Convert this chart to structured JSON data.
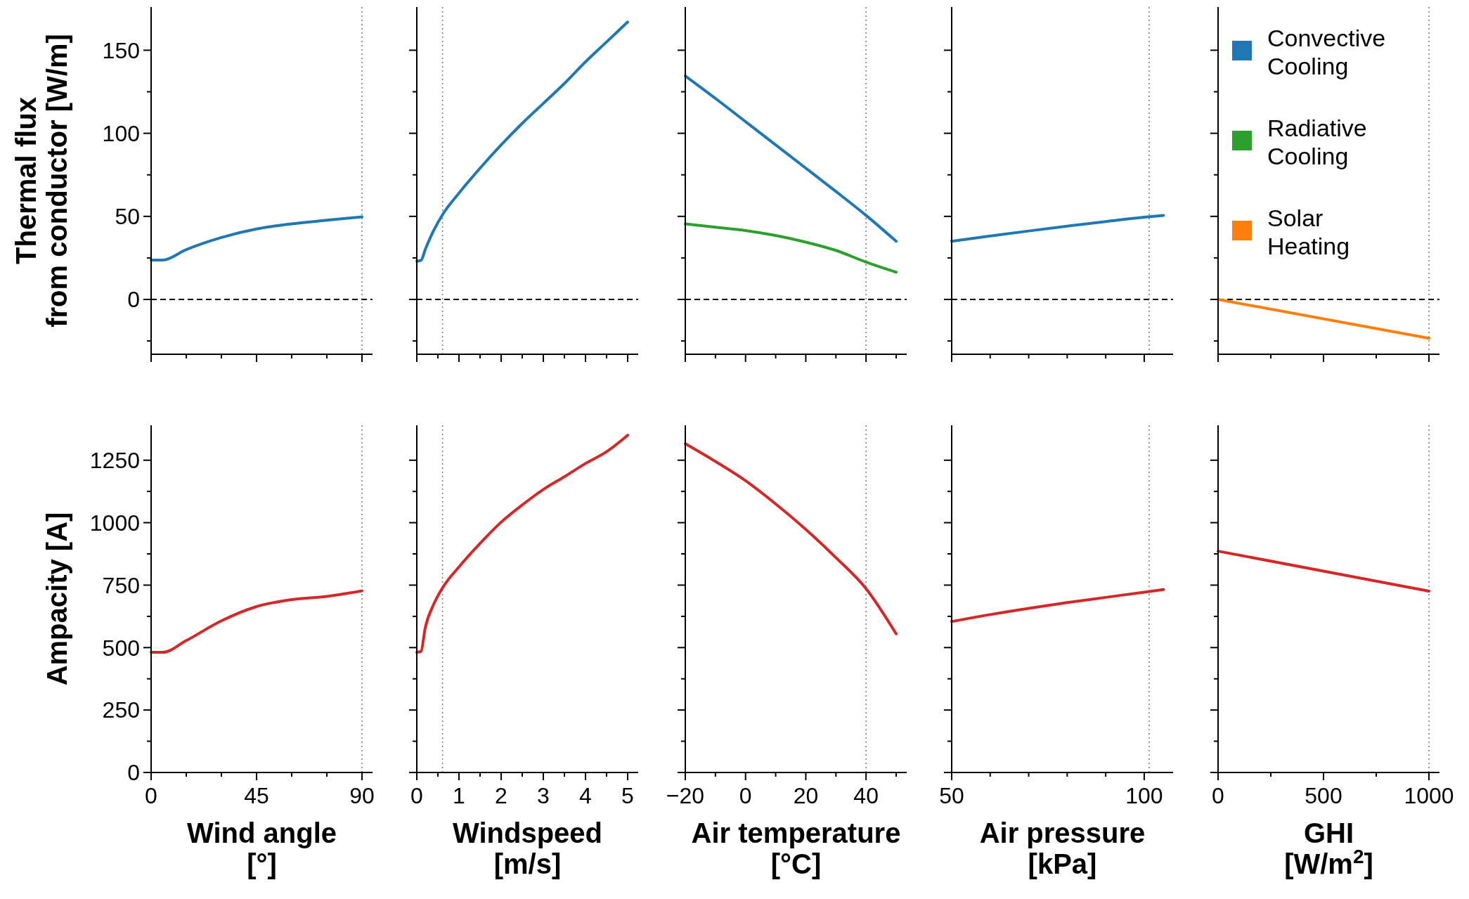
{
  "chart_data": [
    {
      "type": "line",
      "ylabel": "Thermal flux\nfrom conductor [W/m]",
      "x": [
        0,
        5,
        15,
        30,
        45,
        60,
        75,
        90
      ],
      "series": [
        {
          "color": "#1f77b4",
          "values": [
            23.7,
            23.7,
            30,
            37.3,
            42.4,
            45.5,
            47.7,
            49.7
          ]
        }
      ],
      "xlim": [
        0,
        94.5
      ],
      "xticks": [
        0,
        45,
        90,
        {
          "value": 15,
          "label": null
        },
        {
          "value": 30,
          "label": null
        },
        {
          "value": 60,
          "label": null
        },
        {
          "value": 75,
          "label": null
        }
      ],
      "ylim": [
        -33,
        176
      ],
      "yticks": [
        0,
        50,
        100,
        150,
        {
          "value": -25,
          "label": null
        },
        {
          "value": 25,
          "label": null
        },
        {
          "value": 75,
          "label": null
        },
        {
          "value": 125,
          "label": null
        }
      ],
      "tick_labels": "y",
      "ref_lines": [
        {
          "axis": "y",
          "value": 0,
          "color": "#000000",
          "line_style": "dashed"
        },
        {
          "axis": "x",
          "value": 90,
          "color": "#808080",
          "line_style": "dotted"
        }
      ]
    },
    {
      "type": "line",
      "x": [
        0,
        0.1,
        0.2,
        0.4,
        0.61,
        1,
        1.5,
        2,
        2.5,
        3,
        3.5,
        4,
        4.5,
        5
      ],
      "series": [
        {
          "color": "#1f77b4",
          "values": [
            23,
            23.5,
            30,
            41.5,
            51,
            64,
            79,
            93,
            106,
            118,
            130,
            143,
            155,
            167
          ]
        }
      ],
      "xlim": [
        0,
        5.25
      ],
      "xticks": [
        0,
        1,
        2,
        3,
        4,
        5,
        {
          "value": 0.5,
          "label": null
        },
        {
          "value": 1.5,
          "label": null
        },
        {
          "value": 2.5,
          "label": null
        },
        {
          "value": 3.5,
          "label": null
        },
        {
          "value": 4.5,
          "label": null
        }
      ],
      "ylim": [
        -33,
        176
      ],
      "yticks": [
        0,
        50,
        100,
        150,
        {
          "value": -25,
          "label": null
        },
        {
          "value": 25,
          "label": null
        },
        {
          "value": 75,
          "label": null
        },
        {
          "value": 125,
          "label": null
        }
      ],
      "tick_labels": false,
      "ref_lines": [
        {
          "axis": "y",
          "value": 0,
          "color": "#000000",
          "line_style": "dashed"
        },
        {
          "axis": "x",
          "value": 0.61,
          "color": "#808080",
          "line_style": "dotted"
        }
      ]
    },
    {
      "type": "line",
      "x": [
        -20,
        -10,
        0,
        10,
        20,
        30,
        40,
        50
      ],
      "series": [
        {
          "color": "#1f77b4",
          "values": [
            134.5,
            121,
            107,
            93,
            79,
            65,
            50.6,
            35
          ]
        },
        {
          "color": "#2ca02c",
          "values": [
            45.5,
            43.5,
            41.5,
            38.5,
            34.5,
            29.5,
            22.5,
            16.4
          ]
        }
      ],
      "xlim": [
        -20,
        53.5
      ],
      "xticks": [
        -20,
        0,
        20,
        40,
        {
          "value": -10,
          "label": null
        },
        {
          "value": 10,
          "label": null
        },
        {
          "value": 30,
          "label": null
        },
        {
          "value": 50,
          "label": null
        }
      ],
      "ylim": [
        -33,
        176
      ],
      "yticks": [
        0,
        50,
        100,
        150,
        {
          "value": -25,
          "label": null
        },
        {
          "value": 25,
          "label": null
        },
        {
          "value": 75,
          "label": null
        },
        {
          "value": 125,
          "label": null
        }
      ],
      "tick_labels": false,
      "ref_lines": [
        {
          "axis": "y",
          "value": 0,
          "color": "#000000",
          "line_style": "dashed"
        },
        {
          "axis": "x",
          "value": 40,
          "color": "#808080",
          "line_style": "dotted"
        }
      ]
    },
    {
      "type": "line",
      "x": [
        50,
        60,
        70,
        80,
        90,
        100,
        105
      ],
      "series": [
        {
          "color": "#1f77b4",
          "values": [
            35,
            38.2,
            41.2,
            44.1,
            46.9,
            49.5,
            50.6
          ]
        }
      ],
      "xlim": [
        50,
        107.5
      ],
      "xticks": [
        50,
        100,
        {
          "value": 60,
          "label": null
        },
        {
          "value": 70,
          "label": null
        },
        {
          "value": 80,
          "label": null
        },
        {
          "value": 90,
          "label": null
        }
      ],
      "ylim": [
        -33,
        176
      ],
      "yticks": [
        0,
        50,
        100,
        150,
        {
          "value": -25,
          "label": null
        },
        {
          "value": 25,
          "label": null
        },
        {
          "value": 75,
          "label": null
        },
        {
          "value": 125,
          "label": null
        }
      ],
      "tick_labels": false,
      "ref_lines": [
        {
          "axis": "y",
          "value": 0,
          "color": "#000000",
          "line_style": "dashed"
        },
        {
          "axis": "x",
          "value": 101.3,
          "color": "#808080",
          "line_style": "dotted"
        }
      ]
    },
    {
      "type": "line",
      "x": [
        0,
        1000
      ],
      "series": [
        {
          "name": "Convective Cooling",
          "color": "#1f77b4",
          "values": [
            null,
            null
          ]
        },
        {
          "name": "Radiative Cooling",
          "color": "#2ca02c",
          "values": [
            null,
            null
          ]
        },
        {
          "name": "Solar Heating",
          "color": "#ff7f0e",
          "values": [
            0,
            -23.4
          ]
        }
      ],
      "legend": "top left",
      "xlim": [
        0,
        1050
      ],
      "xticks": [
        0,
        500,
        1000,
        {
          "value": 250,
          "label": null
        },
        {
          "value": 750,
          "label": null
        }
      ],
      "ylim": [
        -33,
        176
      ],
      "yticks": [
        0,
        50,
        100,
        150,
        {
          "value": -25,
          "label": null
        },
        {
          "value": 25,
          "label": null
        },
        {
          "value": 75,
          "label": null
        },
        {
          "value": 125,
          "label": null
        }
      ],
      "tick_labels": false,
      "ref_lines": [
        {
          "axis": "y",
          "value": 0,
          "color": "#000000",
          "line_style": "dashed"
        },
        {
          "axis": "x",
          "value": 1000,
          "color": "#808080",
          "line_style": "dotted"
        }
      ]
    },
    {
      "type": "line",
      "ylabel": "Ampacity [A]",
      "xlabel": "Wind angle\n[°]",
      "x": [
        0,
        5,
        15,
        30,
        45,
        60,
        75,
        90
      ],
      "series": [
        {
          "color": "#d62728",
          "values": [
            481,
            481,
            528,
            607,
            664,
            692,
            705,
            727
          ]
        }
      ],
      "xlim": [
        0,
        94.5
      ],
      "xticks": [
        0,
        45,
        90,
        {
          "value": 15,
          "label": null
        },
        {
          "value": 30,
          "label": null
        },
        {
          "value": 60,
          "label": null
        },
        {
          "value": 75,
          "label": null
        }
      ],
      "ylim": [
        0,
        1390
      ],
      "yticks": [
        0,
        250,
        500,
        750,
        1000,
        1250,
        {
          "value": 125,
          "label": null
        },
        {
          "value": 375,
          "label": null
        },
        {
          "value": 625,
          "label": null
        },
        {
          "value": 875,
          "label": null
        },
        {
          "value": 1125,
          "label": null
        }
      ],
      "ref_lines": [
        {
          "axis": "x",
          "value": 90,
          "color": "#808080",
          "line_style": "dotted"
        }
      ]
    },
    {
      "type": "line",
      "xlabel": "Windspeed\n[m/s]",
      "x": [
        0,
        0.1,
        0.2,
        0.4,
        0.61,
        1,
        1.5,
        2,
        2.5,
        3,
        3.5,
        4,
        4.5,
        5
      ],
      "series": [
        {
          "color": "#d62728",
          "values": [
            481,
            485,
            579,
            673,
            739,
            823,
            917,
            1002,
            1071,
            1133,
            1184,
            1237,
            1284,
            1350
          ]
        }
      ],
      "xlim": [
        0,
        5.25
      ],
      "xticks": [
        0,
        1,
        2,
        3,
        4,
        5,
        {
          "value": 0.5,
          "label": null
        },
        {
          "value": 1.5,
          "label": null
        },
        {
          "value": 2.5,
          "label": null
        },
        {
          "value": 3.5,
          "label": null
        },
        {
          "value": 4.5,
          "label": null
        }
      ],
      "ylim": [
        0,
        1390
      ],
      "yticks": [
        0,
        250,
        500,
        750,
        1000,
        1250,
        {
          "value": 125,
          "label": null
        },
        {
          "value": 375,
          "label": null
        },
        {
          "value": 625,
          "label": null
        },
        {
          "value": 875,
          "label": null
        },
        {
          "value": 1125,
          "label": null
        }
      ],
      "tick_labels": "x",
      "ref_lines": [
        {
          "axis": "x",
          "value": 0.61,
          "color": "#808080",
          "line_style": "dotted"
        }
      ]
    },
    {
      "type": "line",
      "xlabel": "Air temperature\n[°C]",
      "x": [
        -20,
        -10,
        0,
        10,
        20,
        30,
        40,
        50
      ],
      "series": [
        {
          "color": "#d62728",
          "values": [
            1316,
            1245,
            1168,
            1075,
            973,
            860,
            736,
            555
          ]
        }
      ],
      "xlim": [
        -20,
        53.5
      ],
      "xticks": [
        -20,
        0,
        20,
        40,
        {
          "value": -10,
          "label": null
        },
        {
          "value": 10,
          "label": null
        },
        {
          "value": 30,
          "label": null
        },
        {
          "value": 50,
          "label": null
        }
      ],
      "ylim": [
        0,
        1390
      ],
      "yticks": [
        0,
        250,
        500,
        750,
        1000,
        1250,
        {
          "value": 125,
          "label": null
        },
        {
          "value": 375,
          "label": null
        },
        {
          "value": 625,
          "label": null
        },
        {
          "value": 875,
          "label": null
        },
        {
          "value": 1125,
          "label": null
        }
      ],
      "tick_labels": "x",
      "ref_lines": [
        {
          "axis": "x",
          "value": 40,
          "color": "#808080",
          "line_style": "dotted"
        }
      ]
    },
    {
      "type": "line",
      "xlabel": "Air pressure\n[kPa]",
      "x": [
        50,
        60,
        70,
        80,
        90,
        100,
        105
      ],
      "series": [
        {
          "color": "#d62728",
          "values": [
            604,
            632,
            657,
            680,
            701,
            722,
            732
          ]
        }
      ],
      "xlim": [
        50,
        107.5
      ],
      "xticks": [
        50,
        100,
        {
          "value": 60,
          "label": null
        },
        {
          "value": 70,
          "label": null
        },
        {
          "value": 80,
          "label": null
        },
        {
          "value": 90,
          "label": null
        }
      ],
      "ylim": [
        0,
        1390
      ],
      "yticks": [
        0,
        250,
        500,
        750,
        1000,
        1250,
        {
          "value": 125,
          "label": null
        },
        {
          "value": 375,
          "label": null
        },
        {
          "value": 625,
          "label": null
        },
        {
          "value": 875,
          "label": null
        },
        {
          "value": 1125,
          "label": null
        }
      ],
      "tick_labels": "x",
      "ref_lines": [
        {
          "axis": "x",
          "value": 101.3,
          "color": "#808080",
          "line_style": "dotted"
        }
      ]
    },
    {
      "type": "line",
      "xlabel": "GHI\n[W/m$^{2}$]",
      "x": [
        0,
        1000
      ],
      "series": [
        {
          "color": "#d62728",
          "values": [
            886,
            726
          ]
        }
      ],
      "xlim": [
        0,
        1050
      ],
      "xticks": [
        0,
        500,
        1000,
        {
          "value": 250,
          "label": null
        },
        {
          "value": 750,
          "label": null
        }
      ],
      "ylim": [
        0,
        1390
      ],
      "yticks": [
        0,
        250,
        500,
        750,
        1000,
        1250,
        {
          "value": 125,
          "label": null
        },
        {
          "value": 375,
          "label": null
        },
        {
          "value": 625,
          "label": null
        },
        {
          "value": 875,
          "label": null
        },
        {
          "value": 1125,
          "label": null
        }
      ],
      "tick_labels": "x",
      "ref_lines": [
        {
          "axis": "x",
          "value": 1000,
          "color": "#808080",
          "line_style": "dotted"
        }
      ]
    }
  ]
}
